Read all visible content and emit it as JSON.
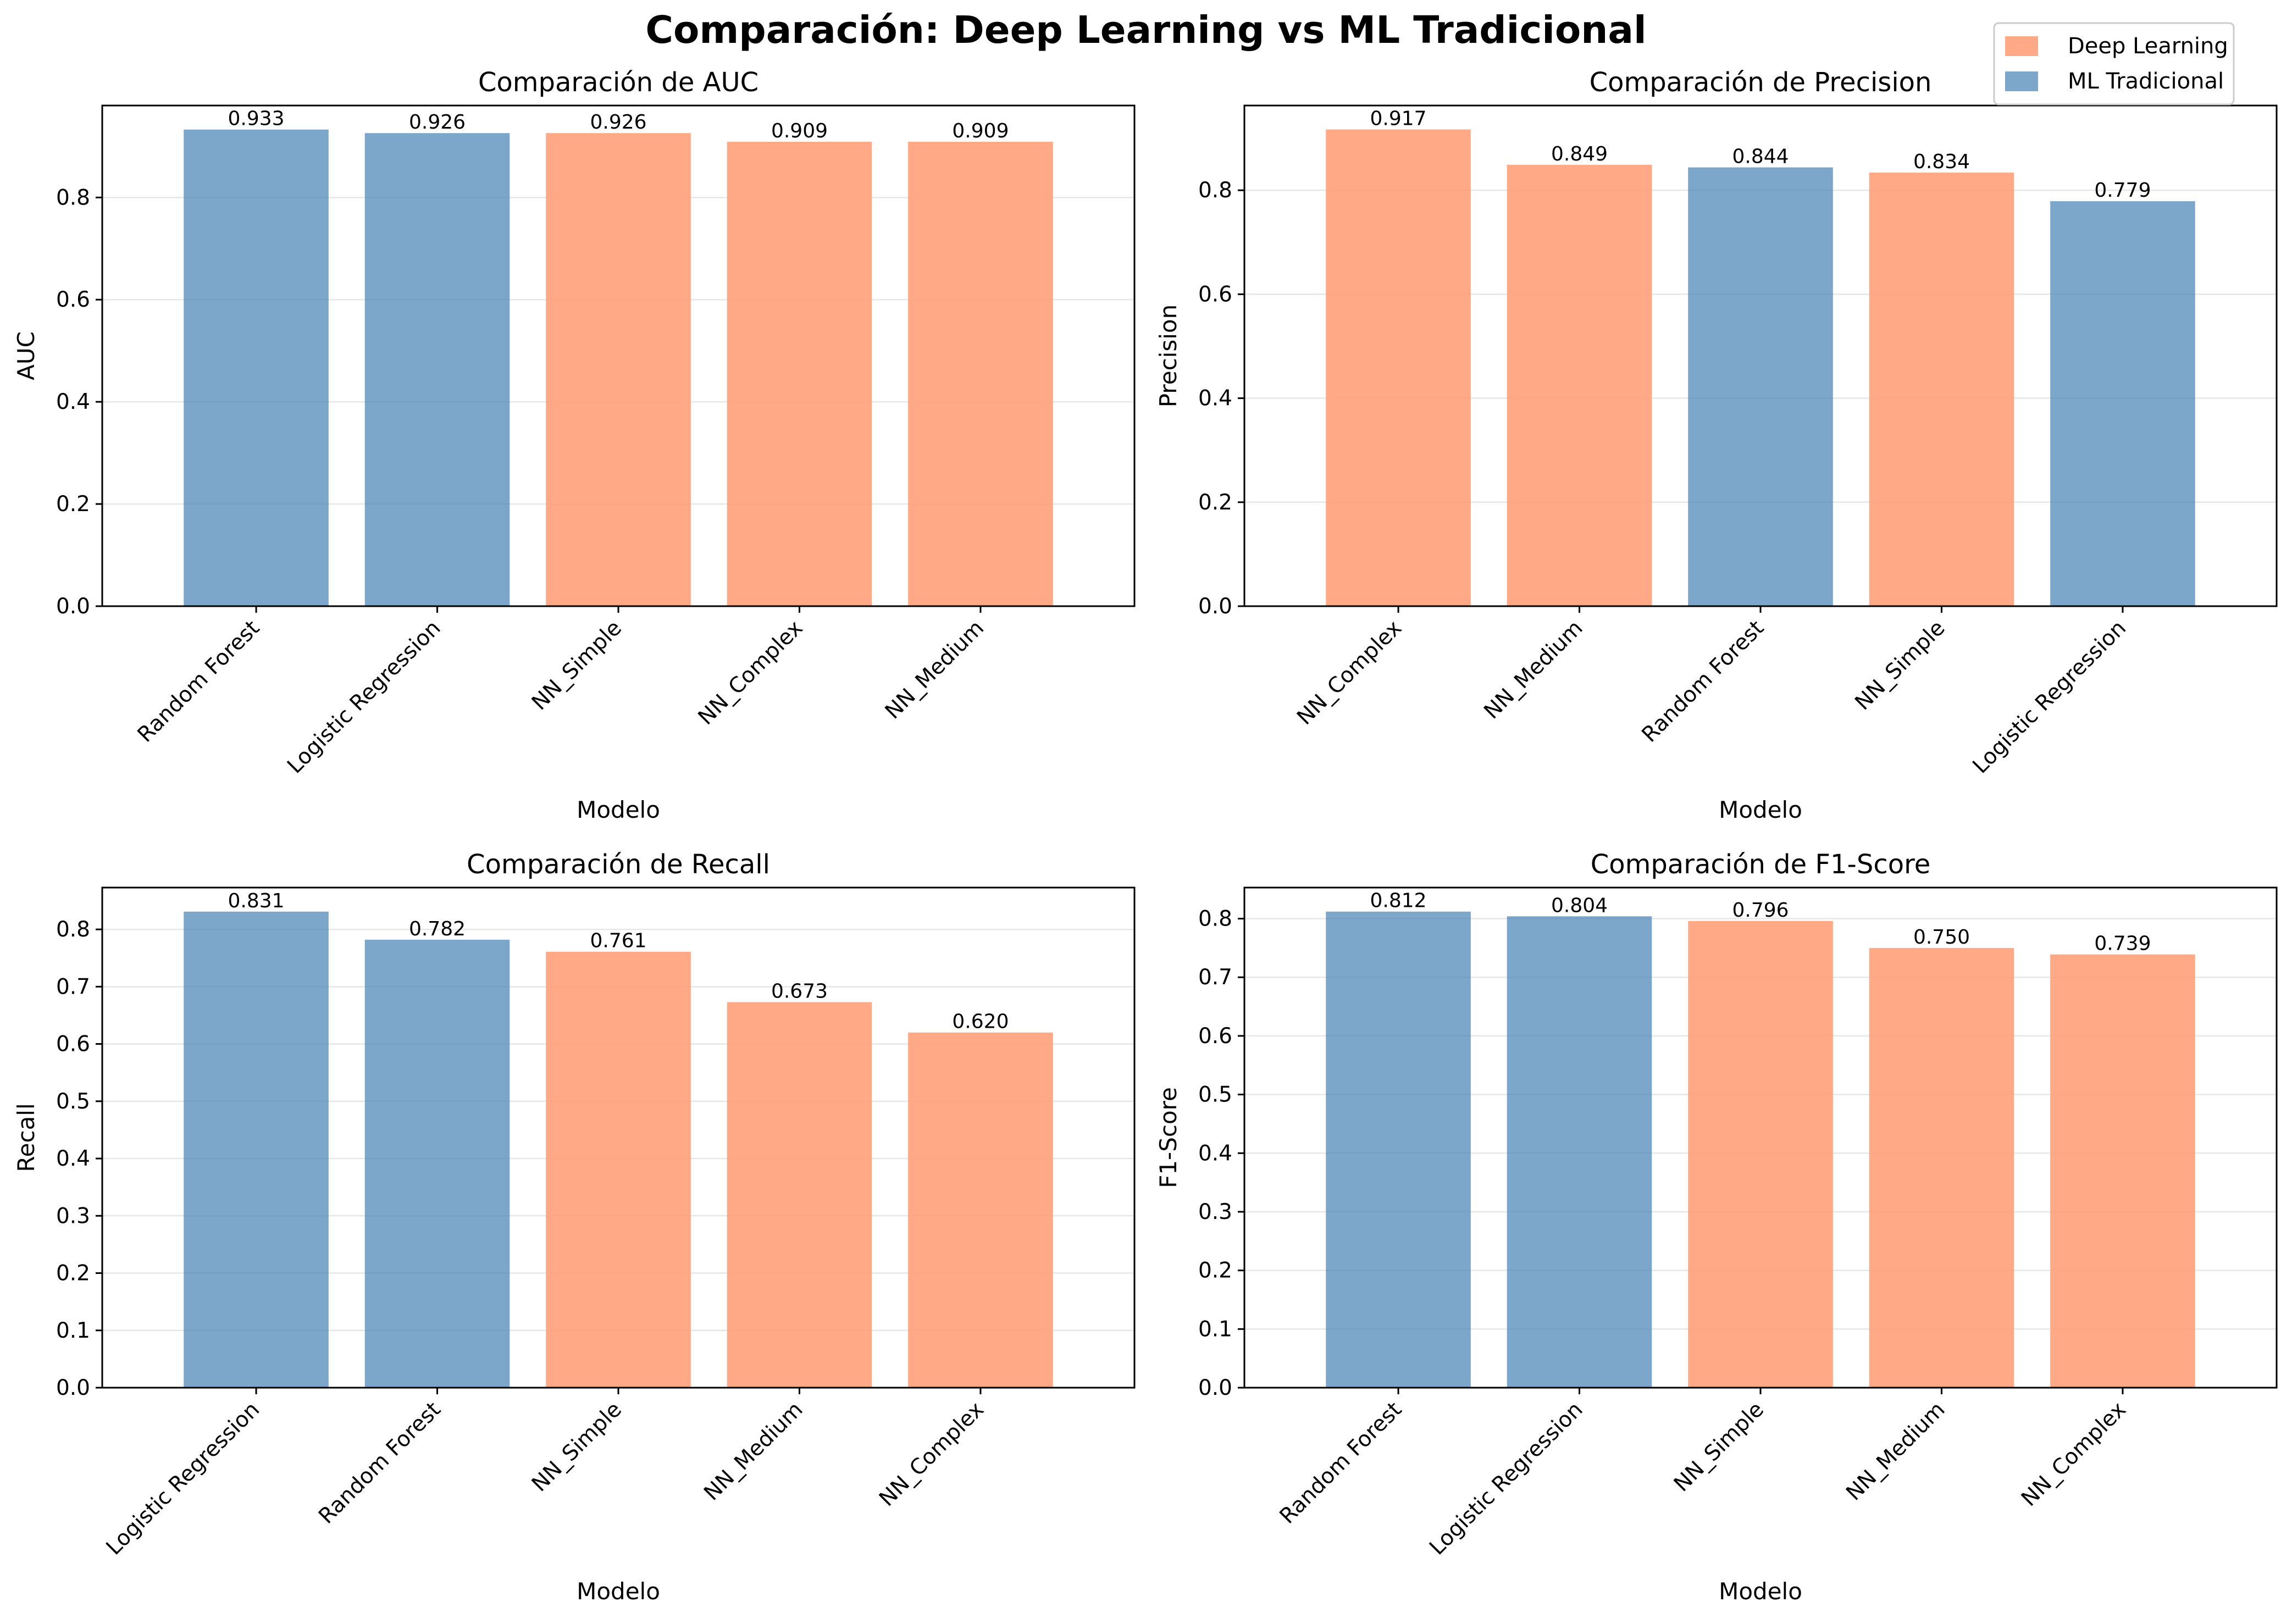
{
  "figure": {
    "title": "Comparación: Deep Learning vs ML Tradicional"
  },
  "legend": {
    "placement": "top-right",
    "items": [
      {
        "label": "Deep Learning",
        "color": "#ffa07a"
      },
      {
        "label": "ML Tradicional",
        "color": "#4682b4"
      }
    ]
  },
  "colors": {
    "deep_learning": "#ffa07a",
    "ml_tradicional": "#4682b4"
  },
  "chart_data": [
    {
      "type": "bar",
      "title": "Comparación de AUC",
      "xlabel": "Modelo",
      "ylabel": "AUC",
      "categories": [
        "Random Forest",
        "Logistic Regression",
        "NN_Simple",
        "NN_Complex",
        "NN_Medium"
      ],
      "values": [
        0.933,
        0.926,
        0.926,
        0.909,
        0.909
      ],
      "value_labels": [
        "0.933",
        "0.926",
        "0.926",
        "0.909",
        "0.909"
      ],
      "groups": [
        "ML Tradicional",
        "ML Tradicional",
        "Deep Learning",
        "Deep Learning",
        "Deep Learning"
      ],
      "ylim": [
        0,
        0.98
      ],
      "yticks": [
        0.0,
        0.2,
        0.4,
        0.6,
        0.8
      ],
      "ytick_labels": [
        "0.0",
        "0.2",
        "0.4",
        "0.6",
        "0.8"
      ],
      "grid": "y"
    },
    {
      "type": "bar",
      "title": "Comparación de Precision",
      "xlabel": "Modelo",
      "ylabel": "Precision",
      "categories": [
        "NN_Complex",
        "NN_Medium",
        "Random Forest",
        "NN_Simple",
        "Logistic Regression"
      ],
      "values": [
        0.917,
        0.849,
        0.844,
        0.834,
        0.779
      ],
      "value_labels": [
        "0.917",
        "0.849",
        "0.844",
        "0.834",
        "0.779"
      ],
      "groups": [
        "Deep Learning",
        "Deep Learning",
        "ML Tradicional",
        "Deep Learning",
        "ML Tradicional"
      ],
      "ylim": [
        0,
        0.963
      ],
      "yticks": [
        0.0,
        0.2,
        0.4,
        0.6,
        0.8
      ],
      "ytick_labels": [
        "0.0",
        "0.2",
        "0.4",
        "0.6",
        "0.8"
      ],
      "grid": "y"
    },
    {
      "type": "bar",
      "title": "Comparación de Recall",
      "xlabel": "Modelo",
      "ylabel": "Recall",
      "categories": [
        "Logistic Regression",
        "Random Forest",
        "NN_Simple",
        "NN_Medium",
        "NN_Complex"
      ],
      "values": [
        0.831,
        0.782,
        0.761,
        0.673,
        0.62
      ],
      "value_labels": [
        "0.831",
        "0.782",
        "0.761",
        "0.673",
        "0.620"
      ],
      "groups": [
        "ML Tradicional",
        "ML Tradicional",
        "Deep Learning",
        "Deep Learning",
        "Deep Learning"
      ],
      "ylim": [
        0,
        0.873
      ],
      "yticks": [
        0.0,
        0.1,
        0.2,
        0.3,
        0.4,
        0.5,
        0.6,
        0.7,
        0.8
      ],
      "ytick_labels": [
        "0.0",
        "0.1",
        "0.2",
        "0.3",
        "0.4",
        "0.5",
        "0.6",
        "0.7",
        "0.8"
      ],
      "grid": "y"
    },
    {
      "type": "bar",
      "title": "Comparación de F1-Score",
      "xlabel": "Modelo",
      "ylabel": "F1-Score",
      "categories": [
        "Random Forest",
        "Logistic Regression",
        "NN_Simple",
        "NN_Medium",
        "NN_Complex"
      ],
      "values": [
        0.812,
        0.804,
        0.796,
        0.75,
        0.739
      ],
      "value_labels": [
        "0.812",
        "0.804",
        "0.796",
        "0.750",
        "0.739"
      ],
      "groups": [
        "ML Tradicional",
        "ML Tradicional",
        "Deep Learning",
        "Deep Learning",
        "Deep Learning"
      ],
      "ylim": [
        0,
        0.853
      ],
      "yticks": [
        0.0,
        0.1,
        0.2,
        0.3,
        0.4,
        0.5,
        0.6,
        0.7,
        0.8
      ],
      "ytick_labels": [
        "0.0",
        "0.1",
        "0.2",
        "0.3",
        "0.4",
        "0.5",
        "0.6",
        "0.7",
        "0.8"
      ],
      "grid": "y"
    }
  ]
}
